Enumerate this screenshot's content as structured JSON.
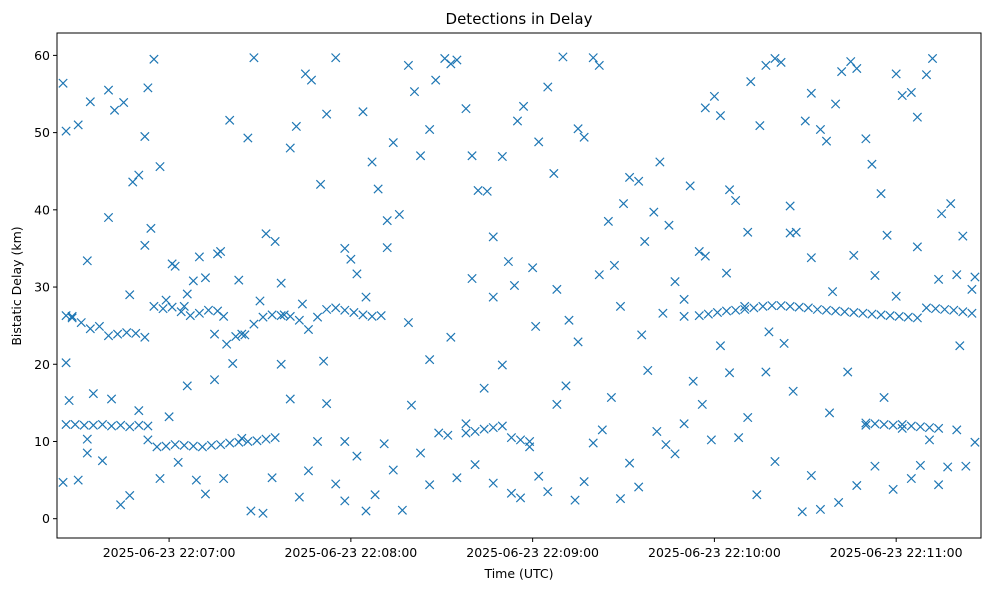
{
  "chart_data": {
    "type": "scatter",
    "title": "Detections in Delay",
    "xlabel": "Time (UTC)",
    "ylabel": "Bistatic Delay (km)",
    "x_type": "datetime",
    "xlim": [
      "2025-06-23 22:06:23",
      "2025-06-23 22:11:28"
    ],
    "ylim": [
      -2.5,
      62.9
    ],
    "x_ticks": [
      "2025-06-23 22:07:00",
      "2025-06-23 22:08:00",
      "2025-06-23 22:09:00",
      "2025-06-23 22:10:00",
      "2025-06-23 22:11:00"
    ],
    "y_ticks": [
      0,
      10,
      20,
      30,
      40,
      50,
      60
    ],
    "grid": false,
    "marker": "x",
    "marker_color": "#1f77b4",
    "series": [
      {
        "x": [
          "22:06:25",
          "22:06:26",
          "22:06:26",
          "22:06:30",
          "22:06:33",
          "22:06:34",
          "22:06:40",
          "22:06:42",
          "22:06:45",
          "22:06:48",
          "22:06:50",
          "22:06:52",
          "22:06:52",
          "22:06:53",
          "22:06:55",
          "22:06:57",
          "22:06:59",
          "22:07:02",
          "22:07:05",
          "22:07:06",
          "22:07:10",
          "22:07:12",
          "22:07:15",
          "22:07:17",
          "22:07:18",
          "22:07:20",
          "22:07:24",
          "22:07:26",
          "22:07:28",
          "22:07:32",
          "22:07:35",
          "22:07:38",
          "22:07:40",
          "22:07:42",
          "22:07:45",
          "22:07:47",
          "22:07:50",
          "22:07:52",
          "22:07:55",
          "22:07:58",
          "22:08:00",
          "22:08:02",
          "22:08:04",
          "22:08:07",
          "22:08:09",
          "22:08:12",
          "22:08:14",
          "22:08:16",
          "22:08:19",
          "22:08:21",
          "22:08:23",
          "22:08:26",
          "22:08:28",
          "22:08:31",
          "22:08:33",
          "22:08:35",
          "22:08:38",
          "22:08:40",
          "22:08:42",
          "22:08:45",
          "22:08:47",
          "22:08:50",
          "22:08:52",
          "22:08:55",
          "22:08:57",
          "22:09:00",
          "22:09:02",
          "22:09:05",
          "22:09:07",
          "22:09:10",
          "22:09:12",
          "22:09:15",
          "22:09:17",
          "22:09:20",
          "22:09:22",
          "22:09:25",
          "22:09:27",
          "22:09:30",
          "22:09:32",
          "22:09:35",
          "22:09:37",
          "22:09:40",
          "22:09:42",
          "22:09:45",
          "22:09:47",
          "22:09:50",
          "22:09:52",
          "22:09:55",
          "22:09:57",
          "22:10:00",
          "22:10:02",
          "22:10:05",
          "22:10:07",
          "22:10:10",
          "22:10:12",
          "22:10:15",
          "22:10:17",
          "22:10:20",
          "22:10:22",
          "22:10:25",
          "22:10:27",
          "22:10:30",
          "22:10:32",
          "22:10:35",
          "22:10:37",
          "22:10:40",
          "22:10:42",
          "22:10:45",
          "22:10:47",
          "22:10:50",
          "22:10:52",
          "22:10:55",
          "22:10:57",
          "22:11:00",
          "22:11:02",
          "22:11:05",
          "22:11:07",
          "22:11:10",
          "22:11:12",
          "22:11:15",
          "22:11:18",
          "22:11:20",
          "22:11:22",
          "22:11:25",
          "22:11:26"
        ],
        "y": [
          56.4,
          50.2,
          20.2,
          51.0,
          8.5,
          54.0,
          55.5,
          52.9,
          53.9,
          43.6,
          44.5,
          49.5,
          35.4,
          55.8,
          59.5,
          45.6,
          28.3,
          32.7,
          27.5,
          29.1,
          33.9,
          31.2,
          23.9,
          34.6,
          26.2,
          51.6,
          23.9,
          49.3,
          59.7,
          36.9,
          35.9,
          26.4,
          48.0,
          50.8,
          57.6,
          56.8,
          43.3,
          52.4,
          59.7,
          10.0,
          33.6,
          31.7,
          52.7,
          46.2,
          42.7,
          35.1,
          48.7,
          39.4,
          58.7,
          55.3,
          47.0,
          50.4,
          56.8,
          59.6,
          58.9,
          59.4,
          53.1,
          47.0,
          42.5,
          42.4,
          36.5,
          46.9,
          33.3,
          51.5,
          53.4,
          32.5,
          48.8,
          55.9,
          44.7,
          59.8,
          25.7,
          50.5,
          49.4,
          59.7,
          58.7,
          38.5,
          32.8,
          40.8,
          44.2,
          43.7,
          35.9,
          39.7,
          46.2,
          38.0,
          30.7,
          26.2,
          43.1,
          34.6,
          53.2,
          54.7,
          52.2,
          42.6,
          41.2,
          27.5,
          56.6,
          50.9,
          58.7,
          59.6,
          59.1,
          40.5,
          37.1,
          51.5,
          55.1,
          50.4,
          48.9,
          53.7,
          57.9,
          59.2,
          58.3,
          49.2,
          45.9,
          42.1,
          36.7,
          57.6,
          54.8,
          55.2,
          52.0,
          57.5,
          59.6,
          39.5,
          40.8,
          31.6,
          36.6,
          29.7,
          31.3
        ]
      },
      {
        "x": [
          "22:06:26",
          "22:06:28",
          "22:06:31",
          "22:06:34",
          "22:06:37",
          "22:06:40",
          "22:06:43",
          "22:06:46",
          "22:06:49",
          "22:06:52",
          "22:06:55",
          "22:06:58",
          "22:07:01",
          "22:07:04",
          "22:07:07",
          "22:07:10",
          "22:07:13",
          "22:07:16",
          "22:07:19",
          "22:07:22",
          "22:07:25",
          "22:07:28",
          "22:07:31",
          "22:07:34",
          "22:07:37",
          "22:07:40",
          "22:07:43",
          "22:07:46",
          "22:07:49",
          "22:07:52",
          "22:07:55",
          "22:07:58",
          "22:08:01",
          "22:08:04",
          "22:08:07",
          "22:08:10"
        ],
        "y": [
          26.3,
          26.2,
          25.4,
          24.6,
          24.9,
          23.7,
          23.9,
          24.1,
          24.0,
          23.5,
          27.5,
          27.2,
          27.4,
          26.8,
          26.3,
          26.6,
          27.0,
          26.9,
          22.6,
          23.6,
          23.8,
          25.2,
          26.1,
          26.4,
          26.3,
          26.2,
          25.7,
          24.5,
          26.1,
          27.1,
          27.3,
          27.0,
          26.7,
          26.4,
          26.2,
          26.3
        ]
      },
      {
        "x": [
          "22:06:26",
          "22:06:29",
          "22:06:32",
          "22:06:35",
          "22:06:38",
          "22:06:41",
          "22:06:44",
          "22:06:47",
          "22:06:50",
          "22:06:53",
          "22:06:56",
          "22:06:59",
          "22:07:02",
          "22:07:05",
          "22:07:08",
          "22:07:11",
          "22:07:14",
          "22:07:17",
          "22:07:20",
          "22:07:23",
          "22:07:26",
          "22:07:29",
          "22:07:32",
          "22:07:35",
          "22:08:38",
          "22:08:41",
          "22:08:44",
          "22:08:47",
          "22:08:50",
          "22:08:53",
          "22:08:56",
          "22:08:59",
          "22:10:50",
          "22:10:53",
          "22:10:56",
          "22:10:59",
          "22:11:02",
          "22:11:05",
          "22:11:08",
          "22:11:11",
          "22:11:14"
        ],
        "y": [
          12.2,
          12.2,
          12.1,
          12.1,
          12.2,
          12.0,
          12.1,
          11.9,
          12.1,
          12.0,
          9.3,
          9.4,
          9.6,
          9.5,
          9.4,
          9.3,
          9.5,
          9.6,
          9.8,
          9.9,
          10.0,
          10.1,
          10.3,
          10.5,
          11.1,
          11.3,
          11.6,
          11.8,
          12.0,
          10.5,
          10.2,
          10.0,
          12.4,
          12.3,
          12.2,
          12.1,
          12.2,
          12.0,
          11.9,
          11.8,
          11.7
        ]
      },
      {
        "x": [
          "22:09:55",
          "22:09:58",
          "22:10:01",
          "22:10:04",
          "22:10:07",
          "22:10:10",
          "22:10:13",
          "22:10:16",
          "22:10:19",
          "22:10:22",
          "22:10:25",
          "22:10:28",
          "22:10:31",
          "22:10:34",
          "22:10:37",
          "22:10:40",
          "22:10:43",
          "22:10:46",
          "22:10:49",
          "22:10:52",
          "22:10:55",
          "22:10:58",
          "22:11:01",
          "22:11:04",
          "22:11:07",
          "22:11:10",
          "22:11:13",
          "22:11:16",
          "22:11:19",
          "22:11:22",
          "22:11:25"
        ],
        "y": [
          26.3,
          26.5,
          26.7,
          26.9,
          27.0,
          27.1,
          27.3,
          27.5,
          27.6,
          27.6,
          27.5,
          27.4,
          27.3,
          27.1,
          27.0,
          26.9,
          26.8,
          26.7,
          26.6,
          26.5,
          26.4,
          26.3,
          26.2,
          26.1,
          26.0,
          27.3,
          27.2,
          27.1,
          27.0,
          26.8,
          26.6
        ]
      },
      {
        "x": [
          "22:06:25",
          "22:06:27",
          "22:06:30",
          "22:06:33",
          "22:06:35",
          "22:06:38",
          "22:06:41",
          "22:06:44",
          "22:06:47",
          "22:06:50",
          "22:06:53",
          "22:06:57",
          "22:07:00",
          "22:07:03",
          "22:07:06",
          "22:07:09",
          "22:07:12",
          "22:07:15",
          "22:07:18",
          "22:07:21",
          "22:07:24",
          "22:07:27",
          "22:07:31",
          "22:07:34",
          "22:07:37",
          "22:07:40",
          "22:07:43",
          "22:07:46",
          "22:07:49",
          "22:07:52",
          "22:07:55",
          "22:07:58",
          "22:08:02",
          "22:08:05",
          "22:08:08",
          "22:08:11",
          "22:08:14",
          "22:08:17",
          "22:08:20",
          "22:08:23",
          "22:08:26",
          "22:08:29",
          "22:08:32",
          "22:08:35",
          "22:08:38",
          "22:08:41",
          "22:08:44",
          "22:08:47",
          "22:08:50",
          "22:08:53",
          "22:08:56",
          "22:08:59",
          "22:09:02",
          "22:09:05",
          "22:09:08",
          "22:09:11",
          "22:09:14",
          "22:09:17",
          "22:09:20",
          "22:09:23",
          "22:09:26",
          "22:09:29",
          "22:09:32",
          "22:09:35",
          "22:09:38",
          "22:09:41",
          "22:09:44",
          "22:09:47",
          "22:09:50",
          "22:09:53",
          "22:09:56",
          "22:09:59",
          "22:10:02",
          "22:10:05",
          "22:10:08",
          "22:10:11",
          "22:10:14",
          "22:10:17",
          "22:10:20",
          "22:10:23",
          "22:10:26",
          "22:10:29",
          "22:10:32",
          "22:10:35",
          "22:10:38",
          "22:10:41",
          "22:10:44",
          "22:10:47",
          "22:10:50",
          "22:10:53",
          "22:10:56",
          "22:10:59",
          "22:11:02",
          "22:11:05",
          "22:11:08",
          "22:11:11",
          "22:11:14",
          "22:11:17",
          "22:11:20",
          "22:11:23",
          "22:11:26"
        ],
        "y": [
          4.7,
          15.3,
          5.0,
          10.3,
          16.2,
          7.5,
          15.5,
          1.8,
          3.0,
          14.0,
          10.2,
          5.2,
          13.2,
          7.3,
          17.2,
          5.0,
          3.2,
          18.0,
          5.2,
          20.1,
          10.4,
          1.0,
          0.7,
          5.3,
          20.0,
          15.5,
          2.8,
          6.2,
          10.0,
          14.9,
          4.5,
          2.3,
          8.1,
          1.0,
          3.1,
          9.7,
          6.3,
          1.1,
          14.7,
          8.5,
          4.4,
          11.1,
          10.8,
          5.3,
          12.3,
          7.0,
          16.9,
          4.6,
          19.9,
          3.3,
          2.7,
          9.3,
          5.5,
          3.5,
          14.8,
          17.2,
          2.4,
          4.8,
          9.8,
          11.5,
          15.7,
          2.6,
          7.2,
          4.1,
          19.2,
          11.3,
          9.6,
          8.4,
          12.3,
          17.8,
          14.8,
          10.2,
          22.4,
          18.9,
          10.5,
          13.1,
          3.1,
          19.0,
          7.4,
          22.7,
          16.5,
          0.9,
          5.6,
          1.2,
          13.7,
          2.1,
          19.0,
          4.3,
          12.1,
          6.8,
          15.7,
          3.8,
          11.7,
          5.2,
          6.9,
          10.2,
          4.4,
          6.7,
          11.5,
          6.8,
          9.9
        ]
      },
      {
        "x": [
          "22:06:28",
          "22:06:33",
          "22:06:40",
          "22:06:47",
          "22:06:54",
          "22:07:01",
          "22:07:08",
          "22:07:16",
          "22:07:23",
          "22:07:30",
          "22:07:37",
          "22:07:44",
          "22:07:51",
          "22:07:58",
          "22:08:05",
          "22:08:12",
          "22:08:19",
          "22:08:26",
          "22:08:33",
          "22:08:40",
          "22:08:47",
          "22:08:54",
          "22:09:01",
          "22:09:08",
          "22:09:15",
          "22:09:22",
          "22:09:29",
          "22:09:36",
          "22:09:43",
          "22:09:50",
          "22:09:57",
          "22:10:04",
          "22:10:11",
          "22:10:18",
          "22:10:25",
          "22:10:32",
          "22:10:39",
          "22:10:46",
          "22:10:53",
          "22:11:00",
          "22:11:07",
          "22:11:14",
          "22:11:21"
        ],
        "y": [
          26.0,
          33.4,
          39.0,
          29.0,
          37.6,
          33.0,
          30.8,
          34.3,
          30.9,
          28.2,
          30.5,
          27.8,
          20.4,
          35.0,
          28.7,
          38.6,
          25.4,
          20.6,
          23.5,
          31.1,
          28.7,
          30.2,
          24.9,
          29.7,
          22.9,
          31.6,
          27.5,
          23.8,
          26.6,
          28.4,
          34.0,
          31.8,
          37.1,
          24.2,
          37.0,
          33.8,
          29.4,
          34.1,
          31.5,
          28.8,
          35.2,
          31.0,
          22.4
        ]
      }
    ]
  }
}
